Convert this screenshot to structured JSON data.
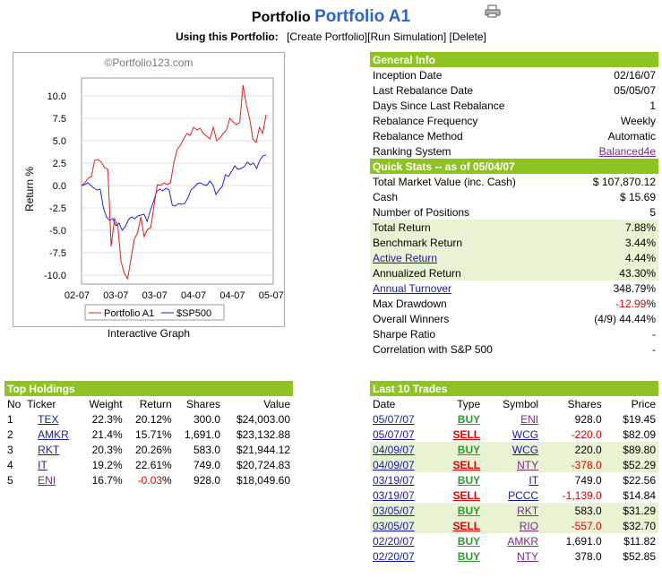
{
  "header": {
    "title_prefix": "Portfolio",
    "portfolio_name": "Portfolio A1",
    "using_label": "Using this Portfolio:",
    "links": [
      "[Create Portfolio]",
      "[Run Simulation]",
      "[Delete]"
    ]
  },
  "chart": {
    "watermark": "©Portfolio123.com",
    "graph_label": "Interactive Graph"
  },
  "chart_data": {
    "type": "line",
    "ylabel": "Return %",
    "ylim": [
      -11,
      12
    ],
    "yticks": [
      "10.0",
      "7.5",
      "5.0",
      "2.5",
      "0.0",
      "-2.5",
      "-5.0",
      "-7.5",
      "-10.0"
    ],
    "ytick_values": [
      10,
      7.5,
      5,
      2.5,
      0,
      -2.5,
      -5,
      -7.5,
      -10
    ],
    "xticks": [
      "02-07",
      "03-07",
      "03-07",
      "04-07",
      "04-07",
      "05-07"
    ],
    "legend": [
      "Portfolio A1",
      "$SP500"
    ],
    "colors": {
      "portfolio": "#e02020",
      "sp500": "#2020e0"
    },
    "series": [
      {
        "name": "Portfolio A1",
        "values": [
          0,
          0.3,
          0.8,
          1,
          2.8,
          2.9,
          2.6,
          2,
          1.8,
          -6.8,
          -3.7,
          -4.5,
          -8.5,
          -9.8,
          -10.4,
          -8.2,
          -6,
          -5.3,
          -3.5,
          -5.7,
          -4.9,
          -4.7,
          -2.3,
          0.1,
          0,
          0.3,
          0.1,
          0.3,
          2.5,
          4,
          4.5,
          5.2,
          5.8,
          5.6,
          6.5,
          6.2,
          6.4,
          5.8,
          5.5,
          5.2,
          6.5,
          5,
          5.3,
          5.8,
          6.2,
          7.5,
          7.1,
          6.8,
          7,
          11.2,
          9.1,
          7.5,
          5.2,
          4.8,
          6.5,
          5.8,
          7.9
        ]
      },
      {
        "name": "$SP500",
        "values": [
          0,
          0.1,
          0.3,
          0,
          -0.3,
          -0.5,
          -0.4,
          -2.5,
          -3.5,
          -3.9,
          -3.7,
          -4.5,
          -4.2,
          -5,
          -4.6,
          -3.8,
          -3.5,
          -3.7,
          -3.4,
          -3.3,
          -3.2,
          -4,
          -2.8,
          -1.8,
          -0.7,
          -0.4,
          -0.6,
          -0.3,
          -0.5,
          -2.2,
          -2.3,
          -2,
          -2.1,
          -2,
          -1.4,
          -0.5,
          -0.2,
          0.2,
          0.3,
          0.1,
          0,
          0.5,
          0.1,
          -1,
          -0.5,
          -0.1,
          1.2,
          1,
          1.6,
          2.2,
          1.8,
          1.9,
          2.1,
          2.6,
          2.3,
          2.5,
          1.9,
          2.8,
          3.3,
          3.4
        ]
      }
    ]
  },
  "general_info": {
    "title": "General Info",
    "rows": [
      {
        "label": "Inception Date",
        "value": "02/16/07"
      },
      {
        "label": "Last Rebalance Date",
        "value": "05/05/07"
      },
      {
        "label": "Days Since Last Rebalance",
        "value": "1"
      },
      {
        "label": "Rebalance Frequency",
        "value": "Weekly"
      },
      {
        "label": "Rebalance Method",
        "value": "Automatic"
      },
      {
        "label": "Ranking System",
        "value": "Balanced4e"
      }
    ]
  },
  "quick_stats": {
    "title": "Quick Stats -- as of 05/04/07",
    "rows": [
      {
        "label": "Total Market Value (inc. Cash)",
        "value": "$ 107,870.12"
      },
      {
        "label": "Cash",
        "value": "$ 15.69"
      },
      {
        "label": "Number of Positions",
        "value": "5"
      },
      {
        "label": "Total Return",
        "value": "7.88%"
      },
      {
        "label": "Benchmark Return",
        "value": "3.44%"
      },
      {
        "label": "Active Return",
        "value": "4.44%"
      },
      {
        "label": "Annualized Return",
        "value": "43.30%"
      },
      {
        "label": "Annual Turnover",
        "value": "348.79%"
      },
      {
        "label": "Max Drawdown",
        "value_neg": "-12.99",
        "value_pct": "%"
      },
      {
        "label": "Overall Winners",
        "value": "(4/9) 44.44%"
      },
      {
        "label": "Sharpe Ratio",
        "value": "-"
      },
      {
        "label": "Correlation with S&P 500",
        "value": "-"
      }
    ]
  },
  "top_holdings": {
    "title": "Top Holdings",
    "columns": [
      "No",
      "Ticker",
      "Weight",
      "Return",
      "Shares",
      "Value"
    ],
    "rows": [
      {
        "no": "1",
        "ticker": "TEX",
        "weight": "22.3%",
        "ret": "20.12%",
        "shares": "300.0",
        "value": "$24,003.00"
      },
      {
        "no": "2",
        "ticker": "AMKR",
        "weight": "21.4%",
        "ret": "15.71%",
        "shares": "1,691.0",
        "value": "$23,132.88"
      },
      {
        "no": "3",
        "ticker": "RKT",
        "weight": "20.3%",
        "ret": "20.26%",
        "shares": "583.0",
        "value": "$21,944.12"
      },
      {
        "no": "4",
        "ticker": "IT",
        "weight": "19.2%",
        "ret": "22.61%",
        "shares": "749.0",
        "value": "$20,724.83"
      },
      {
        "no": "5",
        "ticker": "ENI",
        "weight": "16.7%",
        "ret_neg": "-0.03",
        "ret_pct": "%",
        "shares": "928.0",
        "value": "$18,049.60"
      }
    ]
  },
  "last_trades": {
    "title": "Last 10 Trades",
    "columns": [
      "Date",
      "Type",
      "Symbol",
      "Shares",
      "Price"
    ],
    "rows": [
      {
        "date": "05/07/07",
        "type": "BUY",
        "symbol": "ENI",
        "shares": "928.0",
        "price": "$19.45"
      },
      {
        "date": "05/07/07",
        "type": "SELL",
        "symbol": "WCG",
        "shares": "-220.0",
        "price": "$82.09"
      },
      {
        "date": "04/09/07",
        "type": "BUY",
        "symbol": "WCG",
        "shares": "220.0",
        "price": "$89.80"
      },
      {
        "date": "04/09/07",
        "type": "SELL",
        "symbol": "NTY",
        "shares": "-378.0",
        "price": "$52.29"
      },
      {
        "date": "03/19/07",
        "type": "BUY",
        "symbol": "IT",
        "shares": "749.0",
        "price": "$22.56"
      },
      {
        "date": "03/19/07",
        "type": "SELL",
        "symbol": "PCCC",
        "shares": "-1,139.0",
        "price": "$14.84"
      },
      {
        "date": "03/05/07",
        "type": "BUY",
        "symbol": "RKT",
        "shares": "583.0",
        "price": "$31.29"
      },
      {
        "date": "03/05/07",
        "type": "SELL",
        "symbol": "RIO",
        "shares": "-557.0",
        "price": "$32.70"
      },
      {
        "date": "02/20/07",
        "type": "BUY",
        "symbol": "AMKR",
        "shares": "1,691.0",
        "price": "$11.82"
      },
      {
        "date": "02/20/07",
        "type": "BUY",
        "symbol": "NTY",
        "shares": "378.0",
        "price": "$52.85"
      }
    ]
  }
}
